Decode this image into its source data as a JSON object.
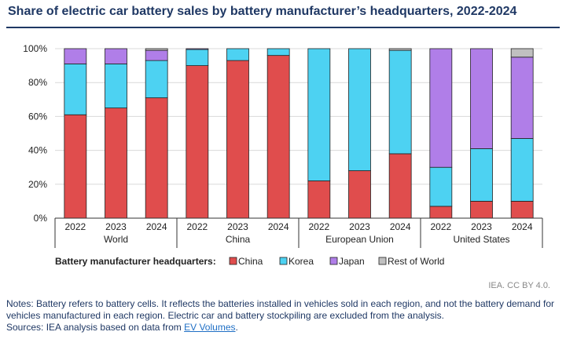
{
  "title": "Share of electric car battery sales by battery manufacturer’s headquarters, 2022-2024",
  "legend_title": "Battery manufacturer headquarters:",
  "credit": "IEA. CC BY 4.0.",
  "notes": "Notes: Battery refers to battery cells. It reflects the batteries installed in vehicles sold in each region, and not the battery demand for vehicles manufactured in each region. Electric car and battery stockpiling are excluded from the analysis.",
  "sources_prefix": "Sources: IEA analysis based on data from ",
  "sources_link": "EV Volumes",
  "sources_suffix": ".",
  "chart_data": {
    "type": "bar",
    "stacked": true,
    "percent": true,
    "title": "Share of electric car battery sales by battery manufacturer’s headquarters, 2022-2024",
    "ylim": [
      0,
      100
    ],
    "y_ticks": [
      "0%",
      "20%",
      "40%",
      "60%",
      "80%",
      "100%"
    ],
    "grid": true,
    "legend_position": "bottom",
    "groups": [
      "World",
      "China",
      "European Union",
      "United States"
    ],
    "years": [
      "2022",
      "2023",
      "2024"
    ],
    "categories": [
      "World 2022",
      "World 2023",
      "World 2024",
      "China 2022",
      "China 2023",
      "China 2024",
      "European Union 2022",
      "European Union 2023",
      "European Union 2024",
      "United States 2022",
      "United States 2023",
      "United States 2024"
    ],
    "series": [
      {
        "name": "China",
        "color": "#e04d4d",
        "values": [
          61,
          65,
          71,
          90,
          93,
          96,
          22,
          28,
          38,
          7,
          10,
          10
        ]
      },
      {
        "name": "Korea",
        "color": "#4dd2f2",
        "values": [
          30,
          26,
          22,
          9.5,
          7,
          4,
          78,
          72,
          61,
          23,
          31,
          37
        ]
      },
      {
        "name": "Japan",
        "color": "#b07ee8",
        "values": [
          9,
          9,
          6,
          0.5,
          0,
          0,
          0,
          0,
          0,
          70,
          59,
          48
        ]
      },
      {
        "name": "Rest of World",
        "color": "#c0c0c0",
        "values": [
          0,
          0,
          1,
          0,
          0,
          0,
          0,
          0,
          1,
          0,
          0,
          5
        ]
      }
    ]
  }
}
